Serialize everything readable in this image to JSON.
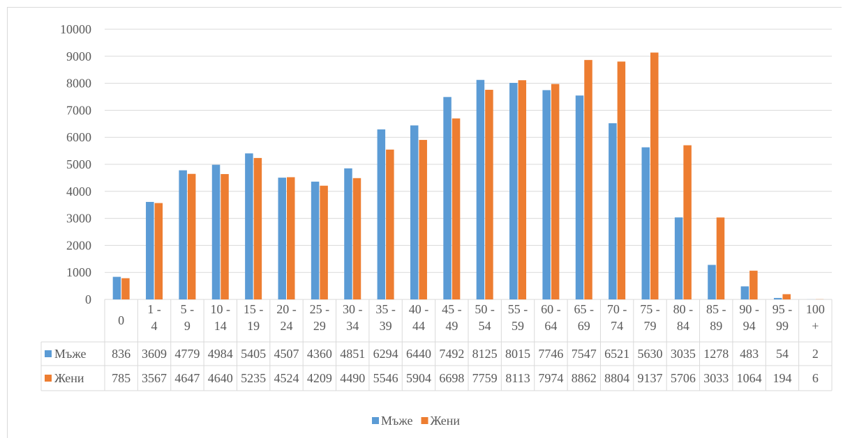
{
  "chart_data": {
    "type": "bar",
    "title": "",
    "xlabel": "",
    "ylabel": "",
    "ylim": [
      0,
      10000
    ],
    "yticks": [
      0,
      1000,
      2000,
      3000,
      4000,
      5000,
      6000,
      7000,
      8000,
      9000,
      10000
    ],
    "grid": true,
    "legend_position": "bottom",
    "data_table": true,
    "categories": [
      [
        "0"
      ],
      [
        "1 -",
        "4"
      ],
      [
        "5 -",
        "9"
      ],
      [
        "10 -",
        "14"
      ],
      [
        "15 -",
        "19"
      ],
      [
        "20 -",
        "24"
      ],
      [
        "25 -",
        "29"
      ],
      [
        "30 -",
        "34"
      ],
      [
        "35 -",
        "39"
      ],
      [
        "40 -",
        "44"
      ],
      [
        "45 -",
        "49"
      ],
      [
        "50 -",
        "54"
      ],
      [
        "55 -",
        "59"
      ],
      [
        "60 -",
        "64"
      ],
      [
        "65 -",
        "69"
      ],
      [
        "70 -",
        "74"
      ],
      [
        "75 -",
        "79"
      ],
      [
        "80 -",
        "84"
      ],
      [
        "85 -",
        "89"
      ],
      [
        "90 -",
        "94"
      ],
      [
        "95 -",
        "99"
      ],
      [
        "100",
        "+"
      ]
    ],
    "series": [
      {
        "name": "Мъже",
        "color": "#5b9bd5",
        "values": [
          836,
          3609,
          4779,
          4984,
          5405,
          4507,
          4360,
          4851,
          6294,
          6440,
          7492,
          8125,
          8015,
          7746,
          7547,
          6521,
          5630,
          3035,
          1278,
          483,
          54,
          2
        ]
      },
      {
        "name": "Жени",
        "color": "#ed7d31",
        "values": [
          785,
          3567,
          4647,
          4640,
          5235,
          4524,
          4209,
          4490,
          5546,
          5904,
          6698,
          7759,
          8113,
          7974,
          8862,
          8804,
          9137,
          5706,
          3033,
          1064,
          194,
          6
        ]
      }
    ]
  }
}
